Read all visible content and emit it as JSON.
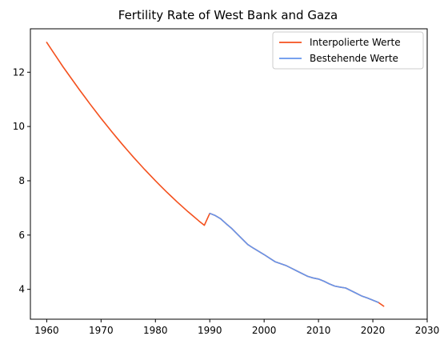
{
  "chart_data": {
    "type": "line",
    "title": "Fertility Rate of West Bank and Gaza",
    "xlabel": "",
    "ylabel": "",
    "xlim": [
      1957,
      2030
    ],
    "ylim": [
      2.9,
      13.6
    ],
    "xticks": [
      1960,
      1970,
      1980,
      1990,
      2000,
      2010,
      2020,
      2030
    ],
    "yticks": [
      4,
      6,
      8,
      10,
      12
    ],
    "grid": false,
    "legend_position": "top-right",
    "series": [
      {
        "name": "Interpolierte Werte",
        "color": "#f4511e",
        "x": [
          1960,
          1961,
          1962,
          1963,
          1964,
          1965,
          1966,
          1967,
          1968,
          1969,
          1970,
          1971,
          1972,
          1973,
          1974,
          1975,
          1976,
          1977,
          1978,
          1979,
          1980,
          1981,
          1982,
          1983,
          1984,
          1985,
          1986,
          1987,
          1988,
          1989,
          1990,
          1991,
          1992,
          1993,
          1994,
          1995,
          1996,
          1997,
          1998,
          1999,
          2000,
          2001,
          2002,
          2003,
          2004,
          2005,
          2006,
          2007,
          2008,
          2009,
          2010,
          2011,
          2012,
          2013,
          2014,
          2015,
          2016,
          2017,
          2018,
          2019,
          2020,
          2021,
          2022
        ],
        "y": [
          13.1,
          12.8,
          12.5,
          12.2,
          11.92,
          11.64,
          11.36,
          11.09,
          10.82,
          10.56,
          10.3,
          10.05,
          9.8,
          9.56,
          9.32,
          9.09,
          8.86,
          8.64,
          8.42,
          8.21,
          8.0,
          7.8,
          7.6,
          7.41,
          7.22,
          7.04,
          6.86,
          6.69,
          6.52,
          6.36,
          6.8,
          6.72,
          6.6,
          6.42,
          6.25,
          6.05,
          5.85,
          5.65,
          5.52,
          5.4,
          5.28,
          5.15,
          5.02,
          4.95,
          4.88,
          4.78,
          4.68,
          4.58,
          4.48,
          4.42,
          4.38,
          4.3,
          4.2,
          4.12,
          4.08,
          4.05,
          3.95,
          3.85,
          3.75,
          3.68,
          3.6,
          3.52,
          3.38
        ]
      },
      {
        "name": "Bestehende Werte",
        "color": "#6495ed",
        "x": [
          1990,
          1991,
          1992,
          1993,
          1994,
          1995,
          1996,
          1997,
          1998,
          1999,
          2000,
          2001,
          2002,
          2003,
          2004,
          2005,
          2006,
          2007,
          2008,
          2009,
          2010,
          2011,
          2012,
          2013,
          2014,
          2015,
          2016,
          2017,
          2018,
          2019,
          2020,
          2021
        ],
        "y": [
          6.8,
          6.72,
          6.6,
          6.42,
          6.25,
          6.05,
          5.85,
          5.65,
          5.52,
          5.4,
          5.28,
          5.15,
          5.02,
          4.95,
          4.88,
          4.78,
          4.68,
          4.58,
          4.48,
          4.42,
          4.38,
          4.3,
          4.2,
          4.12,
          4.08,
          4.05,
          3.95,
          3.85,
          3.75,
          3.68,
          3.6,
          3.52
        ]
      }
    ]
  }
}
